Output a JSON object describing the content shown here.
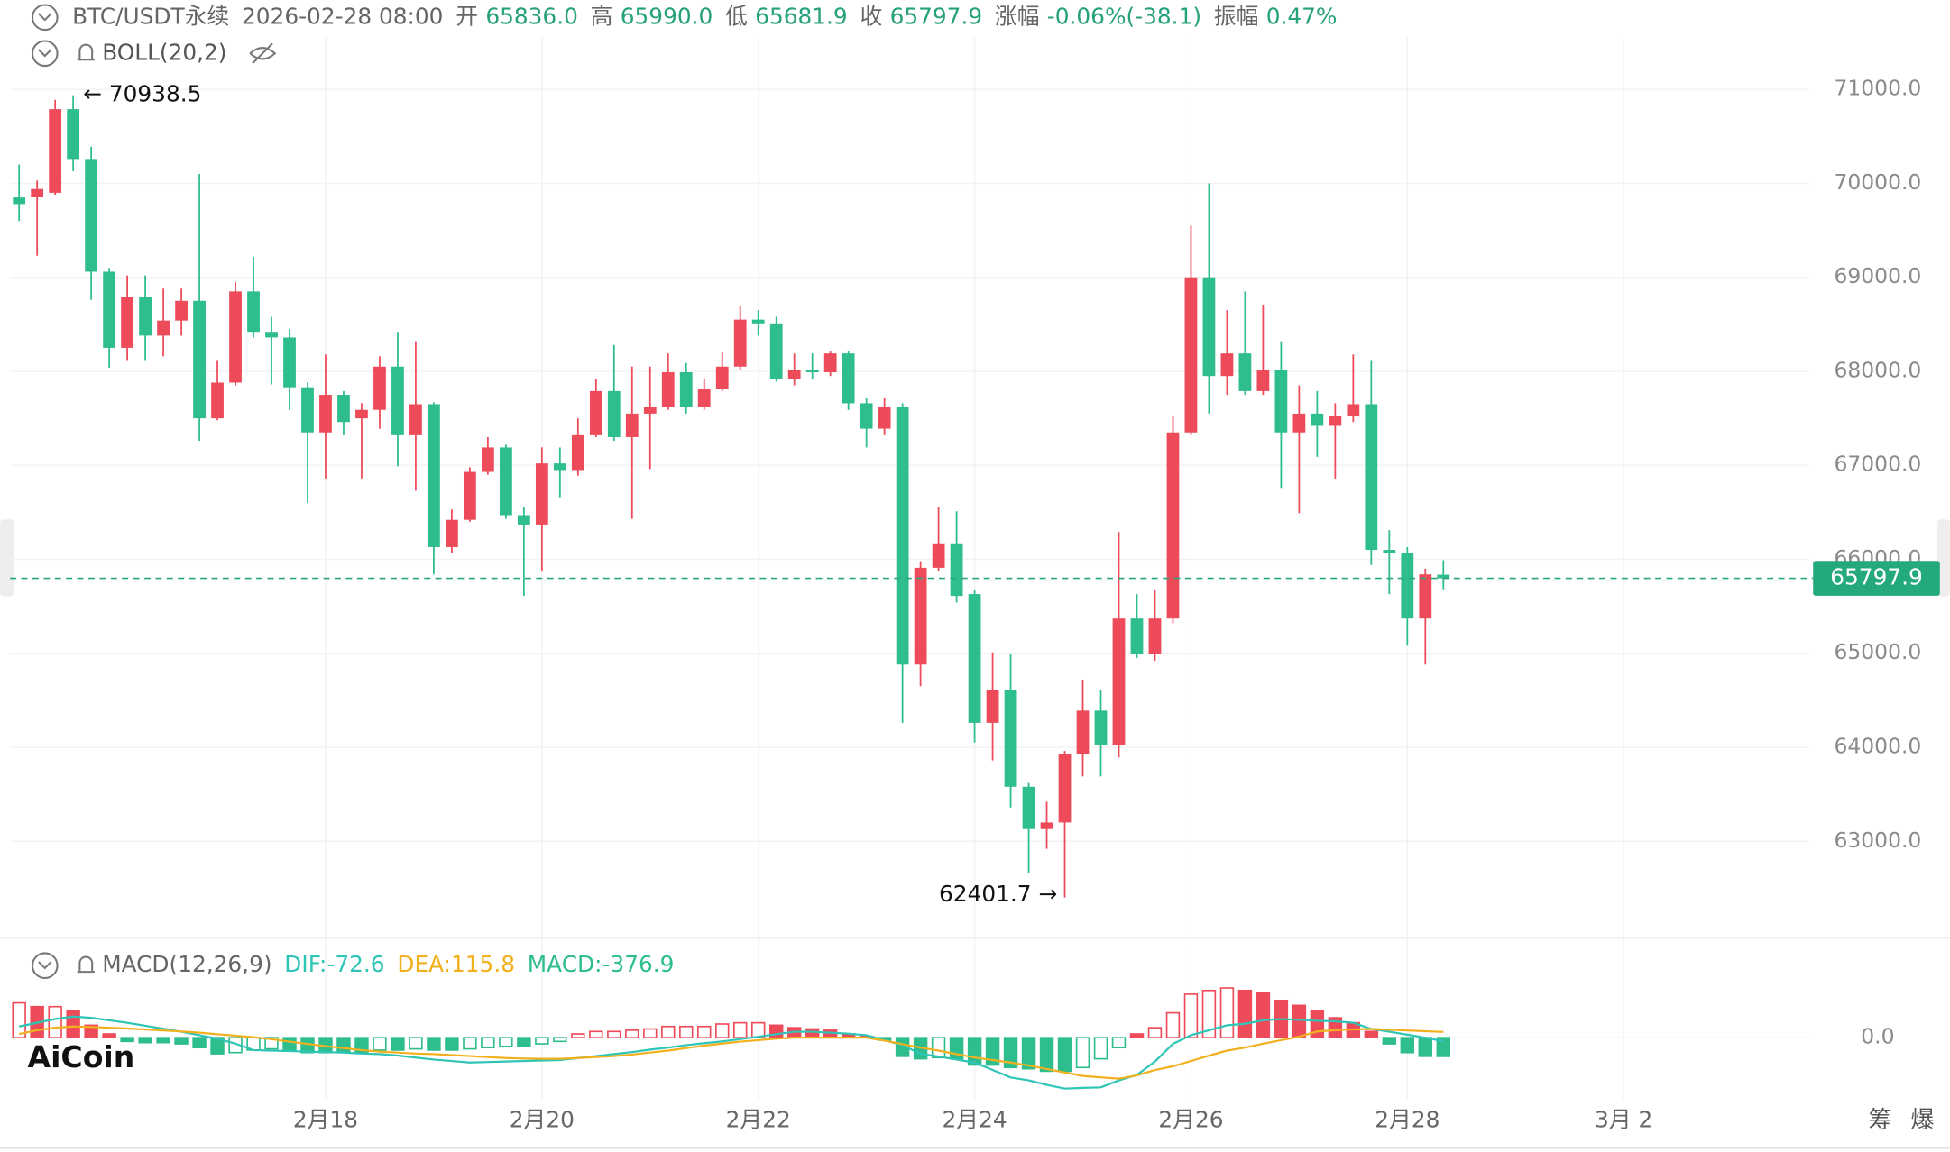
{
  "chart_data": {
    "type": "candlestick",
    "symbol": "BTC/USDT永续",
    "time": "2026-02-28 08:00",
    "quote": [
      {
        "label": "开",
        "value": "65836.0"
      },
      {
        "label": "高",
        "value": "65990.0"
      },
      {
        "label": "低",
        "value": "65681.9"
      },
      {
        "label": "收",
        "value": "65797.9"
      },
      {
        "label": "涨幅",
        "value": "-0.06%(-38.1)"
      },
      {
        "label": "振幅",
        "value": "0.47%"
      }
    ],
    "indicator": "BOLL(20,2)",
    "open": [
      69850,
      69860,
      69900,
      70790,
      70260,
      69060,
      68250,
      68790,
      68380,
      68540,
      68750,
      67500,
      67880,
      68850,
      68420,
      68360,
      67830,
      67350,
      67750,
      67500,
      67590,
      68050,
      67320,
      67650,
      66130,
      66420,
      66930,
      67190,
      66470,
      66370,
      67020,
      66950,
      67320,
      67790,
      67300,
      67550,
      67620,
      67990,
      67620,
      67810,
      68050,
      68550,
      68510,
      67920,
      68010,
      67990,
      68190,
      67660,
      67390,
      67620,
      64880,
      65910,
      66170,
      65630,
      64260,
      64610,
      63580,
      63130,
      63200,
      63930,
      64390,
      64020,
      65370,
      64990,
      65370,
      67350,
      69000,
      67950,
      68190,
      67790,
      68010,
      67350,
      67550,
      67420,
      67520,
      67650,
      66100,
      66070,
      65370,
      65836
    ],
    "high": [
      70200,
      70030,
      70890,
      70938.5,
      70390,
      69100,
      69020,
      69020,
      68880,
      68880,
      70100,
      68120,
      68950,
      69220,
      68580,
      68450,
      67880,
      68180,
      67790,
      67660,
      68160,
      68420,
      68320,
      67670,
      66530,
      66980,
      67300,
      67220,
      66560,
      67190,
      67190,
      67500,
      67920,
      68280,
      68050,
      68050,
      68190,
      68090,
      67920,
      68210,
      68690,
      68650,
      68580,
      68190,
      68190,
      68220,
      68220,
      67720,
      67720,
      67660,
      65980,
      66560,
      66510,
      65670,
      65010,
      64990,
      63620,
      63420,
      63960,
      64720,
      64610,
      66290,
      65630,
      65670,
      67520,
      69550,
      70000,
      68650,
      68850,
      68710,
      68320,
      67850,
      67790,
      67660,
      68180,
      68120,
      66310,
      66130,
      65900,
      65990
    ],
    "low": [
      69600,
      69230,
      69880,
      70130,
      68760,
      68040,
      68120,
      68120,
      68160,
      68380,
      67260,
      67480,
      67850,
      68360,
      67860,
      67590,
      66600,
      66860,
      67320,
      66860,
      67390,
      66990,
      66730,
      65840,
      66070,
      66400,
      66900,
      66430,
      65610,
      65870,
      66660,
      66890,
      67300,
      67260,
      66430,
      66960,
      67590,
      67550,
      67590,
      67790,
      68010,
      68380,
      67890,
      67850,
      67920,
      67950,
      67590,
      67190,
      67320,
      64260,
      64650,
      65870,
      65540,
      64050,
      63860,
      63360,
      62660,
      62920,
      62401.7,
      63690,
      63690,
      63890,
      64950,
      64920,
      65320,
      67320,
      67550,
      67750,
      67750,
      67750,
      66760,
      66490,
      67090,
      66860,
      67460,
      65940,
      65630,
      65080,
      64880,
      65681.9
    ],
    "close": [
      69780,
      69940,
      70790,
      70260,
      69060,
      68250,
      68790,
      68380,
      68540,
      68750,
      67500,
      67880,
      68850,
      68420,
      68360,
      67830,
      67350,
      67750,
      67460,
      67590,
      68050,
      67320,
      67650,
      66130,
      66420,
      66930,
      67190,
      66470,
      66370,
      67020,
      66950,
      67320,
      67790,
      67300,
      67550,
      67620,
      67990,
      67620,
      67810,
      68050,
      68550,
      68510,
      67920,
      68010,
      67990,
      68190,
      67660,
      67390,
      67620,
      64880,
      65910,
      66170,
      65610,
      64260,
      64610,
      63580,
      63130,
      63200,
      63930,
      64390,
      64020,
      65370,
      64990,
      65370,
      67350,
      69000,
      67950,
      68190,
      67790,
      68010,
      67350,
      67550,
      67420,
      67520,
      67650,
      66100,
      66070,
      65370,
      65840,
      65797.9
    ],
    "up_color": "#ee4b5a",
    "down_color": "#2ebd8d",
    "xlim": [
      -0.5,
      99.3
    ],
    "xticks": [
      {
        "value": 17,
        "label": "2月18"
      },
      {
        "value": 29,
        "label": "2月20"
      },
      {
        "value": 41,
        "label": "2月22"
      },
      {
        "value": 53,
        "label": "2月24"
      },
      {
        "value": 65,
        "label": "2月26"
      },
      {
        "value": 77,
        "label": "2月28"
      },
      {
        "value": 89,
        "label": "3月 2"
      }
    ],
    "ylim": [
      62100,
      71555
    ],
    "yticks": [
      {
        "value": 63000,
        "label": "63000.0"
      },
      {
        "value": 64000,
        "label": "64000.0"
      },
      {
        "value": 65000,
        "label": "65000.0"
      },
      {
        "value": 66000,
        "label": "66000.0"
      },
      {
        "value": 67000,
        "label": "67000.0"
      },
      {
        "value": 68000,
        "label": "68000.0"
      },
      {
        "value": 69000,
        "label": "69000.0"
      },
      {
        "value": 70000,
        "label": "70000.0"
      },
      {
        "value": 71000,
        "label": "71000.0"
      }
    ],
    "grid": true,
    "macd": {
      "title": "MACD(12,26,9)",
      "histogram_label": "MACD:-376.9",
      "histogram": [
        700,
        625,
        625,
        550,
        250,
        75,
        -75,
        -100,
        -100,
        -125,
        -200,
        -325,
        -300,
        -250,
        -225,
        -250,
        -300,
        -300,
        -300,
        -300,
        -250,
        -250,
        -225,
        -250,
        -250,
        -225,
        -200,
        -175,
        -175,
        -125,
        -75,
        75,
        125,
        125,
        150,
        175,
        225,
        225,
        225,
        275,
        300,
        300,
        250,
        200,
        175,
        150,
        75,
        25,
        -50,
        -375,
        -425,
        -400,
        -425,
        -550,
        -550,
        -600,
        -625,
        -675,
        -675,
        -600,
        -425,
        -200,
        75,
        200,
        500,
        875,
        950,
        1000,
        950,
        900,
        750,
        650,
        550,
        400,
        300,
        125,
        -125,
        -300,
        -375,
        -376.9
      ],
      "series": [
        {
          "label": "DIF:-72.6",
          "color": "#2ec4b6",
          "values": [
            225,
            300,
            375,
            425,
            400,
            350,
            300,
            240,
            180,
            120,
            50,
            -20,
            -120,
            -250,
            -260,
            -270,
            -280,
            -290,
            -300,
            -320,
            -330,
            -360,
            -400,
            -440,
            -470,
            -500,
            -490,
            -480,
            -470,
            -460,
            -450,
            -410,
            -370,
            -330,
            -290,
            -240,
            -200,
            -150,
            -110,
            -75,
            -30,
            20,
            70,
            120,
            120,
            100,
            80,
            50,
            -50,
            -150,
            -325,
            -380,
            -440,
            -500,
            -650,
            -800,
            -860,
            -950,
            -1025,
            -1010,
            -1000,
            -860,
            -750,
            -480,
            -125,
            50,
            150,
            250,
            280,
            350,
            375,
            360,
            340,
            330,
            300,
            175,
            120,
            60,
            0,
            -72.6
          ]
        },
        {
          "label": "DEA:115.8",
          "color": "#f2b01e",
          "values": [
            75,
            150,
            200,
            225,
            215,
            200,
            185,
            165,
            145,
            125,
            100,
            70,
            40,
            10,
            -30,
            -80,
            -125,
            -170,
            -210,
            -250,
            -280,
            -300,
            -320,
            -330,
            -350,
            -370,
            -390,
            -410,
            -420,
            -425,
            -425,
            -410,
            -390,
            -370,
            -340,
            -300,
            -260,
            -210,
            -160,
            -120,
            -80,
            -50,
            -20,
            0,
            0,
            0,
            0,
            0,
            -60,
            -130,
            -200,
            -260,
            -330,
            -400,
            -450,
            -500,
            -560,
            -630,
            -700,
            -770,
            -800,
            -825,
            -760,
            -650,
            -575,
            -470,
            -360,
            -260,
            -200,
            -120,
            -50,
            20,
            125,
            150,
            165,
            175,
            160,
            145,
            130,
            115.8
          ]
        }
      ],
      "ylim": [
        -1250,
        1125
      ],
      "yticks": [
        {
          "value": 0,
          "label": "0.0"
        }
      ]
    },
    "logo": "AiCoin",
    "side_labels": [
      "筹",
      "爆"
    ]
  }
}
